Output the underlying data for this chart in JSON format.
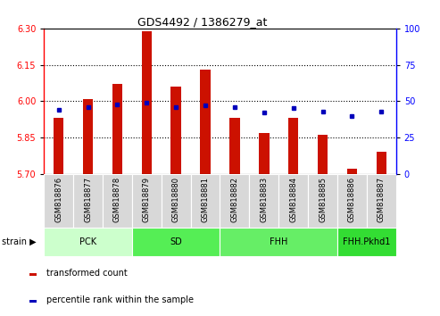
{
  "title": "GDS4492 / 1386279_at",
  "samples": [
    "GSM818876",
    "GSM818877",
    "GSM818878",
    "GSM818879",
    "GSM818880",
    "GSM818881",
    "GSM818882",
    "GSM818883",
    "GSM818884",
    "GSM818885",
    "GSM818886",
    "GSM818887"
  ],
  "transformed_count": [
    5.93,
    6.01,
    6.07,
    6.29,
    6.06,
    6.13,
    5.93,
    5.87,
    5.93,
    5.86,
    5.72,
    5.79
  ],
  "percentile_rank": [
    44,
    46,
    48,
    49,
    46,
    47,
    46,
    42,
    45,
    43,
    40,
    43
  ],
  "y_min": 5.7,
  "y_max": 6.3,
  "y_ticks": [
    5.7,
    5.85,
    6.0,
    6.15,
    6.3
  ],
  "y2_ticks": [
    0,
    25,
    50,
    75,
    100
  ],
  "bar_color": "#cc1100",
  "dot_color": "#0000bb",
  "groups": [
    {
      "label": "PCK",
      "start": 0,
      "end": 2,
      "color": "#ccffcc"
    },
    {
      "label": "SD",
      "start": 3,
      "end": 5,
      "color": "#55ee55"
    },
    {
      "label": "FHH",
      "start": 6,
      "end": 9,
      "color": "#66ee66"
    },
    {
      "label": "FHH.Pkhd1",
      "start": 10,
      "end": 11,
      "color": "#33dd33"
    }
  ],
  "legend_items": [
    {
      "label": "transformed count",
      "color": "#cc1100"
    },
    {
      "label": "percentile rank within the sample",
      "color": "#0000bb"
    }
  ],
  "bar_width": 0.35,
  "title_fontsize": 9,
  "tick_fontsize": 7,
  "label_fontsize": 6,
  "group_fontsize": 7,
  "legend_fontsize": 7
}
